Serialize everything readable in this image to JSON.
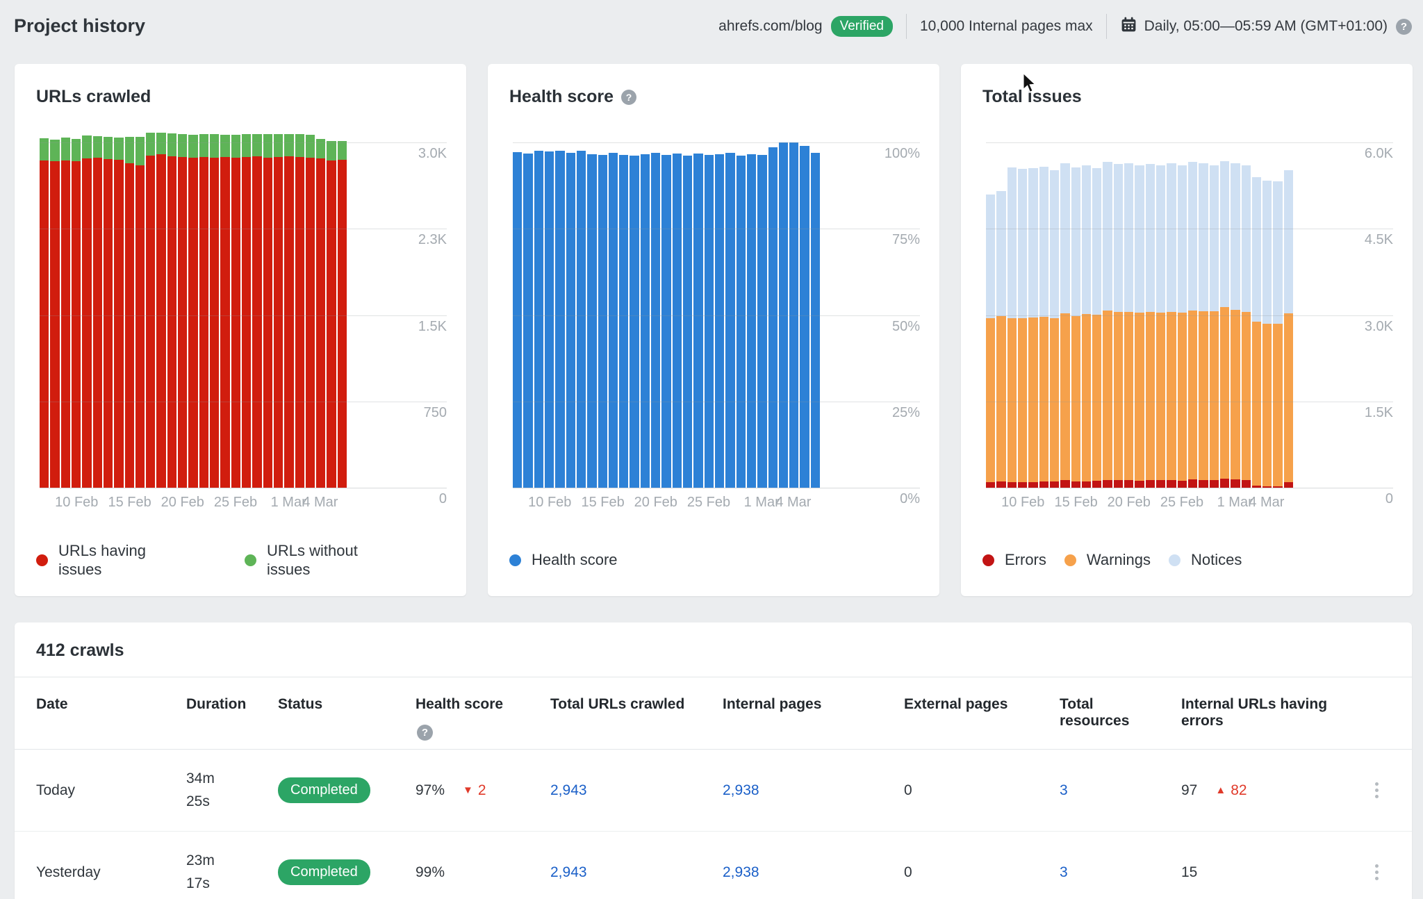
{
  "header": {
    "title": "Project history",
    "domain": "ahrefs.com/blog",
    "verified_label": "Verified",
    "pages_limit": "10,000 Internal pages max",
    "schedule": "Daily, 05:00—05:59 AM (GMT+01:00)"
  },
  "colors": {
    "badge_green": "#2ca565",
    "link_blue": "#1a5fc8",
    "delta_red": "#e03a2a"
  },
  "chart_data": [
    {
      "id": "urls-crawled",
      "type": "bar",
      "title": "URLs crawled",
      "has_help": false,
      "ylim": [
        0,
        3000
      ],
      "ytick_labels": [
        "3.0K",
        "2.3K",
        "1.5K",
        "750",
        "0"
      ],
      "xtick_labels": [
        "10 Feb",
        "15 Feb",
        "20 Feb",
        "25 Feb",
        "1 Mar",
        "4 Mar"
      ],
      "xtick_index": [
        3,
        8,
        13,
        18,
        23,
        26
      ],
      "legend_style": "wide",
      "series": [
        {
          "name": "URLs having issues",
          "color": "#d11d0e",
          "values": [
            2845,
            2838,
            2846,
            2840,
            2862,
            2868,
            2856,
            2850,
            2818,
            2800,
            2884,
            2898,
            2880,
            2872,
            2870,
            2876,
            2868,
            2872,
            2866,
            2874,
            2878,
            2870,
            2874,
            2880,
            2872,
            2868,
            2862,
            2846,
            2852
          ]
        },
        {
          "name": "URLs without issues",
          "color": "#5eb457",
          "values": [
            190,
            186,
            194,
            190,
            200,
            186,
            194,
            190,
            232,
            248,
            198,
            188,
            196,
            200,
            194,
            196,
            202,
            196,
            200,
            196,
            194,
            200,
            196,
            194,
            198,
            196,
            170,
            166,
            158
          ]
        }
      ]
    },
    {
      "id": "health-score",
      "type": "bar",
      "title": "Health score",
      "has_help": true,
      "ylim": [
        0,
        100
      ],
      "ytick_labels": [
        "100%",
        "75%",
        "50%",
        "25%",
        "0%"
      ],
      "xtick_labels": [
        "10 Feb",
        "15 Feb",
        "20 Feb",
        "25 Feb",
        "1 Mar",
        "4 Mar"
      ],
      "xtick_index": [
        3,
        8,
        13,
        18,
        23,
        26
      ],
      "legend_style": "inline",
      "series": [
        {
          "name": "Health score",
          "color": "#2d81d6",
          "values": [
            97.2,
            96.8,
            97.5,
            97.4,
            97.6,
            97.0,
            97.5,
            96.6,
            96.3,
            97.0,
            96.4,
            96.1,
            96.6,
            96.9,
            96.4,
            96.7,
            96.2,
            96.8,
            96.4,
            96.6,
            96.9,
            96.2,
            96.6,
            96.4,
            98.6,
            100,
            100,
            99,
            97
          ]
        }
      ]
    },
    {
      "id": "total-issues",
      "type": "bar",
      "title": "Total issues",
      "has_help": false,
      "ylim": [
        0,
        6000
      ],
      "ytick_labels": [
        "6.0K",
        "4.5K",
        "3.0K",
        "1.5K",
        "0"
      ],
      "xtick_labels": [
        "10 Feb",
        "15 Feb",
        "20 Feb",
        "25 Feb",
        "1 Mar",
        "4 Mar"
      ],
      "xtick_index": [
        3,
        8,
        13,
        18,
        23,
        26
      ],
      "legend_style": "inline",
      "series": [
        {
          "name": "Errors",
          "color": "#c21414",
          "values": [
            95,
            112,
            100,
            96,
            102,
            110,
            104,
            130,
            112,
            106,
            122,
            138,
            134,
            130,
            126,
            130,
            128,
            132,
            126,
            142,
            132,
            136,
            158,
            146,
            130,
            38,
            22,
            20,
            95
          ]
        },
        {
          "name": "Warnings",
          "color": "#f6a14b",
          "values": [
            2856,
            2872,
            2842,
            2846,
            2854,
            2862,
            2840,
            2900,
            2866,
            2912,
            2882,
            2938,
            2920,
            2930,
            2916,
            2926,
            2918,
            2928,
            2922,
            2940,
            2930,
            2926,
            2978,
            2946,
            2930,
            2852,
            2822,
            2826,
            2932
          ]
        },
        {
          "name": "Notices",
          "color": "#cfe0f3",
          "values": [
            2149,
            2176,
            2618,
            2598,
            2604,
            2608,
            2576,
            2610,
            2582,
            2582,
            2556,
            2584,
            2566,
            2580,
            2558,
            2564,
            2554,
            2580,
            2552,
            2578,
            2578,
            2538,
            2544,
            2548,
            2540,
            2510,
            2496,
            2474,
            2493
          ]
        }
      ]
    }
  ],
  "table": {
    "title": "412 crawls",
    "columns": [
      "Date",
      "Duration",
      "Status",
      "Health score",
      "Total URLs crawled",
      "Internal pages",
      "External pages",
      "Total resources",
      "Internal URLs having errors"
    ],
    "rows": [
      {
        "date": "Today",
        "duration_lines": [
          "34m",
          "25s"
        ],
        "status": "Completed",
        "health_score": "97%",
        "health_delta": "2",
        "health_delta_dir": "down",
        "total_urls": "2,943",
        "internal_pages": "2,938",
        "external_pages": "0",
        "total_resources": "3",
        "internal_errors": "97",
        "errors_delta": "82",
        "errors_delta_dir": "up"
      },
      {
        "date": "Yesterday",
        "duration_lines": [
          "23m",
          "17s"
        ],
        "status": "Completed",
        "health_score": "99%",
        "health_delta": "",
        "health_delta_dir": "",
        "total_urls": "2,943",
        "internal_pages": "2,938",
        "external_pages": "0",
        "total_resources": "3",
        "internal_errors": "15",
        "errors_delta": "",
        "errors_delta_dir": ""
      }
    ]
  }
}
